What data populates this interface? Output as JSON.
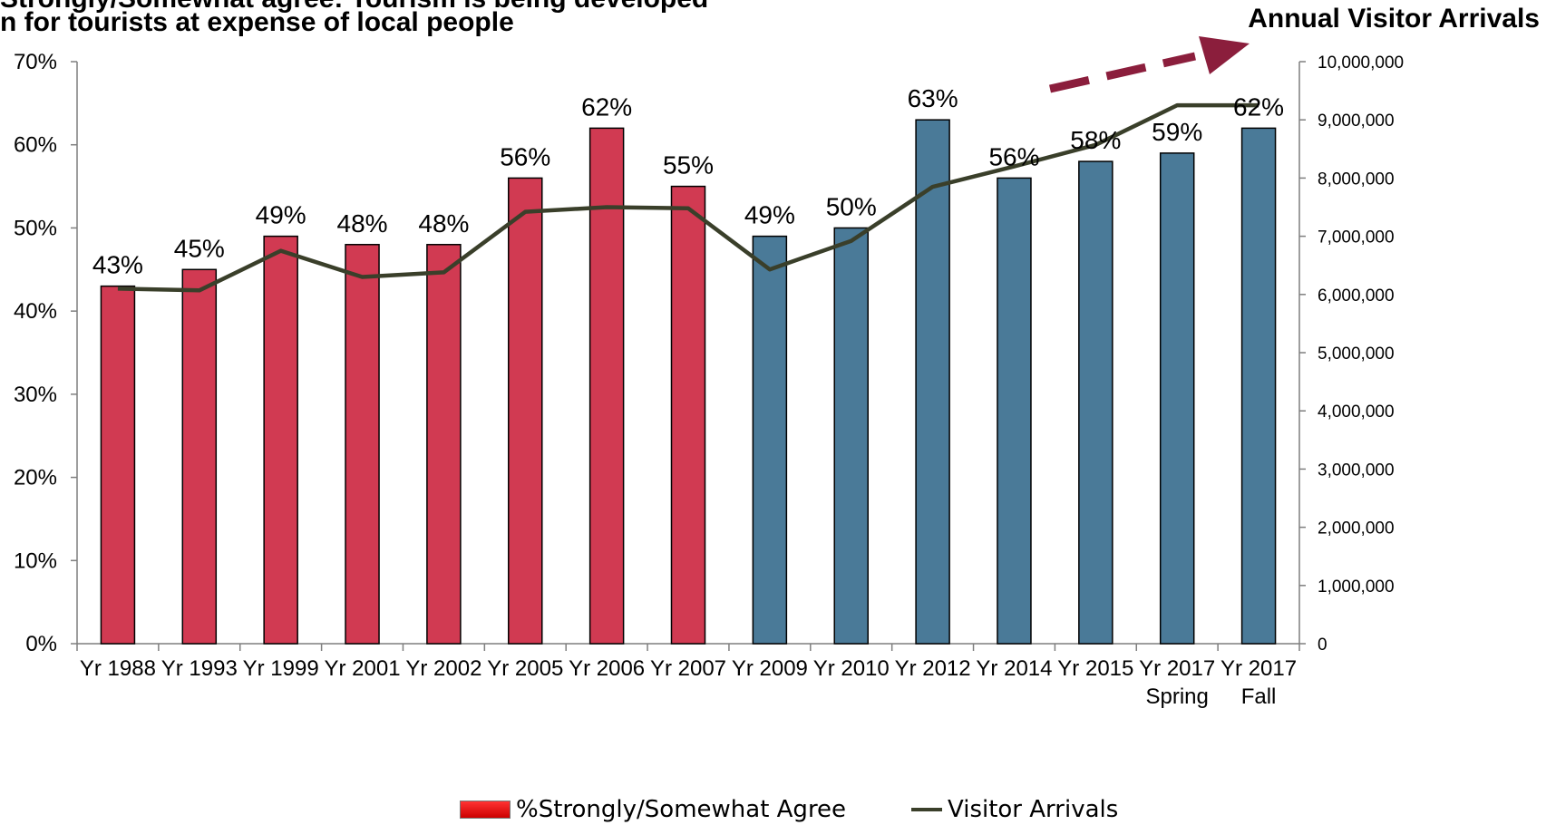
{
  "title": {
    "line1": "Strongly/Somewhat agree: Tourism is being developed",
    "line2": "n for tourists at expense of local people"
  },
  "right_title": "Annual Visitor Arrivals",
  "legend": {
    "bar_label": "%Strongly/Somewhat Agree",
    "line_label": "Visitor Arrivals"
  },
  "colors": {
    "bar_red": "#D13A52",
    "bar_blue": "#4A7A98",
    "line": "#3A3F2A",
    "arrow": "#8B1E3C"
  },
  "chart_data": {
    "type": "bar",
    "categories": [
      [
        "Yr 1988"
      ],
      [
        "Yr 1993"
      ],
      [
        "Yr 1999"
      ],
      [
        "Yr 2001"
      ],
      [
        "Yr 2002"
      ],
      [
        "Yr 2005"
      ],
      [
        "Yr 2006"
      ],
      [
        "Yr 2007"
      ],
      [
        "Yr 2009"
      ],
      [
        "Yr 2010"
      ],
      [
        "Yr 2012"
      ],
      [
        "Yr 2014"
      ],
      [
        "Yr 2015"
      ],
      [
        "Yr 2017",
        "Spring"
      ],
      [
        "Yr 2017",
        "Fall"
      ]
    ],
    "series": [
      {
        "name": "%Strongly/Somewhat Agree",
        "type": "bar",
        "axis": "left",
        "values": [
          43,
          45,
          49,
          48,
          48,
          56,
          62,
          55,
          49,
          50,
          63,
          56,
          58,
          59,
          62
        ],
        "labels": [
          "43%",
          "45%",
          "49%",
          "48%",
          "48%",
          "56%",
          "62%",
          "55%",
          "49%",
          "50%",
          "63%",
          "56%",
          "58%",
          "59%",
          "62%"
        ],
        "color_group": [
          "red",
          "red",
          "red",
          "red",
          "red",
          "red",
          "red",
          "red",
          "blue",
          "blue",
          "blue",
          "blue",
          "blue",
          "blue",
          "blue"
        ]
      },
      {
        "name": "Visitor Arrivals",
        "type": "line",
        "axis": "right",
        "values": [
          6100000,
          6070000,
          6750000,
          6300000,
          6380000,
          7420000,
          7500000,
          7480000,
          6430000,
          6920000,
          7850000,
          8200000,
          8570000,
          9250000,
          9250000
        ]
      }
    ],
    "y_left": {
      "min": 0,
      "max": 70,
      "ticks": [
        0,
        10,
        20,
        30,
        40,
        50,
        60,
        70
      ],
      "tick_labels": [
        "0%",
        "10%",
        "20%",
        "30%",
        "40%",
        "50%",
        "60%",
        "70%"
      ]
    },
    "y_right": {
      "min": 0,
      "max": 10000000,
      "ticks": [
        0,
        1000000,
        2000000,
        3000000,
        4000000,
        5000000,
        6000000,
        7000000,
        8000000,
        9000000,
        10000000
      ],
      "tick_labels": [
        "0",
        "1,000,000",
        "2,000,000",
        "3,000,000",
        "4,000,000",
        "5,000,000",
        "6,000,000",
        "7,000,000",
        "8,000,000",
        "9,000,000",
        "10,000,000"
      ]
    },
    "grid": false,
    "legend_position": "bottom",
    "annotation": "dashed arrow pointing up-right"
  }
}
